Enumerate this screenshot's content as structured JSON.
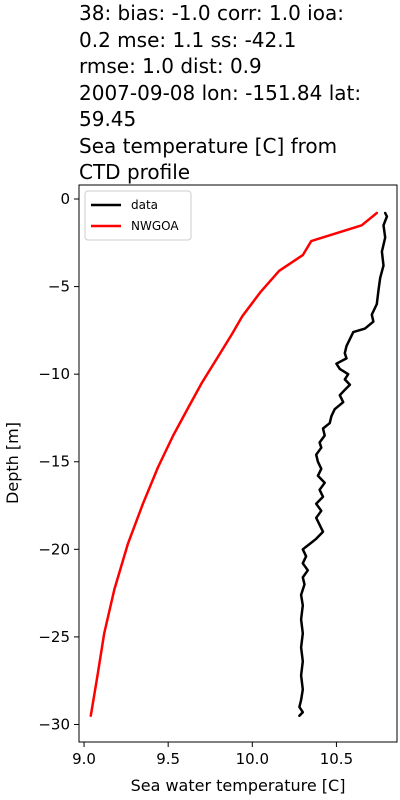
{
  "title_lines": [
    "38: bias: -1.0  corr: 1.0  ioa:",
    "0.2  mse: 1.1  ss: -42.1",
    "rmse: 1.0  dist: 0.9",
    "2007-09-08 lon: -151.84 lat:",
    "59.45",
    "Sea temperature [C] from",
    "CTD profile"
  ],
  "chart_data": {
    "type": "line",
    "title": "38: bias: -1.0  corr: 1.0  ioa: 0.2  mse: 1.1  ss: -42.1 rmse: 1.0  dist: 0.9 2007-09-08 lon: -151.84 lat: 59.45 Sea temperature [C] from CTD profile",
    "xlabel": "Sea water temperature [C]",
    "ylabel": "Depth [m]",
    "xlim": [
      8.97,
      10.86
    ],
    "ylim": [
      -31.0,
      0.8
    ],
    "xticks": [
      9.0,
      9.5,
      10.0,
      10.5
    ],
    "xtick_labels": [
      "9.0",
      "9.5",
      "10.0",
      "10.5"
    ],
    "yticks": [
      0,
      -5,
      -10,
      -15,
      -20,
      -25,
      -30
    ],
    "ytick_labels": [
      "0",
      "−5",
      "−10",
      "−15",
      "−20",
      "−25",
      "−30"
    ],
    "grid": false,
    "legend": "top-left",
    "series": [
      {
        "name": "data",
        "color": "#000000",
        "points": [
          [
            10.79,
            -0.8
          ],
          [
            10.8,
            -1.0
          ],
          [
            10.78,
            -1.5
          ],
          [
            10.79,
            -2.2
          ],
          [
            10.77,
            -3.0
          ],
          [
            10.78,
            -3.8
          ],
          [
            10.76,
            -4.5
          ],
          [
            10.75,
            -5.2
          ],
          [
            10.74,
            -6.0
          ],
          [
            10.71,
            -6.6
          ],
          [
            10.72,
            -7.0
          ],
          [
            10.67,
            -7.4
          ],
          [
            10.6,
            -7.6
          ],
          [
            10.58,
            -8.0
          ],
          [
            10.56,
            -8.4
          ],
          [
            10.55,
            -8.8
          ],
          [
            10.56,
            -9.1
          ],
          [
            10.5,
            -9.4
          ],
          [
            10.52,
            -9.7
          ],
          [
            10.57,
            -10.0
          ],
          [
            10.55,
            -10.3
          ],
          [
            10.58,
            -10.6
          ],
          [
            10.55,
            -10.9
          ],
          [
            10.52,
            -11.2
          ],
          [
            10.54,
            -11.6
          ],
          [
            10.49,
            -12.0
          ],
          [
            10.47,
            -12.4
          ],
          [
            10.46,
            -12.8
          ],
          [
            10.42,
            -13.1
          ],
          [
            10.43,
            -13.5
          ],
          [
            10.4,
            -13.9
          ],
          [
            10.41,
            -14.2
          ],
          [
            10.38,
            -14.6
          ],
          [
            10.39,
            -15.0
          ],
          [
            10.41,
            -15.4
          ],
          [
            10.39,
            -15.8
          ],
          [
            10.43,
            -16.2
          ],
          [
            10.4,
            -16.6
          ],
          [
            10.42,
            -17.0
          ],
          [
            10.38,
            -17.4
          ],
          [
            10.41,
            -17.8
          ],
          [
            10.38,
            -18.2
          ],
          [
            10.4,
            -18.6
          ],
          [
            10.42,
            -19.0
          ],
          [
            10.38,
            -19.4
          ],
          [
            10.34,
            -19.7
          ],
          [
            10.3,
            -20.0
          ],
          [
            10.32,
            -20.4
          ],
          [
            10.3,
            -20.8
          ],
          [
            10.33,
            -21.2
          ],
          [
            10.3,
            -21.6
          ],
          [
            10.31,
            -22.0
          ],
          [
            10.29,
            -22.6
          ],
          [
            10.3,
            -23.2
          ],
          [
            10.29,
            -24.0
          ],
          [
            10.3,
            -24.8
          ],
          [
            10.29,
            -25.6
          ],
          [
            10.3,
            -26.4
          ],
          [
            10.29,
            -27.2
          ],
          [
            10.3,
            -28.0
          ],
          [
            10.29,
            -28.6
          ],
          [
            10.28,
            -29.0
          ],
          [
            10.3,
            -29.3
          ],
          [
            10.28,
            -29.5
          ]
        ]
      },
      {
        "name": "NWGOA",
        "color": "#ff0000",
        "points": [
          [
            10.74,
            -0.8
          ],
          [
            10.65,
            -1.5
          ],
          [
            10.35,
            -2.4
          ],
          [
            10.3,
            -3.2
          ],
          [
            10.16,
            -4.1
          ],
          [
            10.05,
            -5.3
          ],
          [
            9.94,
            -6.7
          ],
          [
            9.88,
            -7.7
          ],
          [
            9.79,
            -9.1
          ],
          [
            9.7,
            -10.5
          ],
          [
            9.62,
            -11.9
          ],
          [
            9.53,
            -13.5
          ],
          [
            9.44,
            -15.3
          ],
          [
            9.35,
            -17.4
          ],
          [
            9.26,
            -19.7
          ],
          [
            9.18,
            -22.3
          ],
          [
            9.12,
            -24.8
          ],
          [
            9.08,
            -27.2
          ],
          [
            9.04,
            -29.5
          ]
        ]
      }
    ]
  }
}
